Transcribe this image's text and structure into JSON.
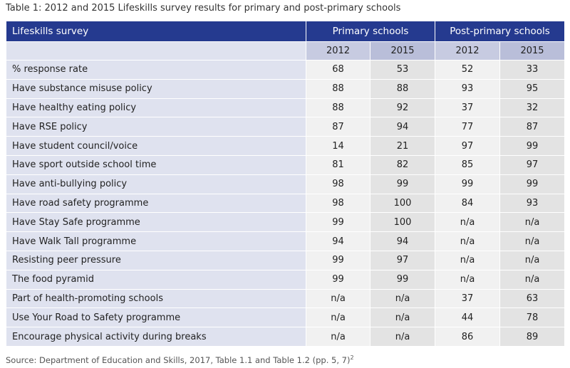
{
  "caption": "Table 1: 2012 and 2015 Lifeskills survey results for primary and post-primary schools",
  "header": {
    "label": "Lifeskills survey",
    "group_primary": "Primary schools",
    "group_post": "Post-primary schools"
  },
  "years": [
    "2012",
    "2015",
    "2012",
    "2015"
  ],
  "rows": [
    {
      "label": "% response rate",
      "values": [
        "68",
        "53",
        "52",
        "33"
      ]
    },
    {
      "label": "Have substance misuse policy",
      "values": [
        "88",
        "88",
        "93",
        "95"
      ]
    },
    {
      "label": "Have healthy eating policy",
      "values": [
        "88",
        "92",
        "37",
        "32"
      ]
    },
    {
      "label": "Have RSE policy",
      "values": [
        "87",
        "94",
        "77",
        "87"
      ]
    },
    {
      "label": "Have student council/voice",
      "values": [
        "14",
        "21",
        "97",
        "99"
      ]
    },
    {
      "label": "Have sport outside school time",
      "values": [
        "81",
        "82",
        "85",
        "97"
      ]
    },
    {
      "label": "Have anti-bullying policy",
      "values": [
        "98",
        "99",
        "99",
        "99"
      ]
    },
    {
      "label": "Have road safety programme",
      "values": [
        "98",
        "100",
        "84",
        "93"
      ]
    },
    {
      "label": "Have Stay Safe programme",
      "values": [
        "99",
        "100",
        "n/a",
        "n/a"
      ]
    },
    {
      "label": "Have Walk Tall programme",
      "values": [
        "94",
        "94",
        "n/a",
        "n/a"
      ]
    },
    {
      "label": "Resisting peer pressure",
      "values": [
        "99",
        "97",
        "n/a",
        "n/a"
      ]
    },
    {
      "label": "The food pyramid",
      "values": [
        "99",
        "99",
        "n/a",
        "n/a"
      ]
    },
    {
      "label": "Part of health-promoting schools",
      "values": [
        "n/a",
        "n/a",
        "37",
        "63"
      ]
    },
    {
      "label": "Use Your Road to Safety programme",
      "values": [
        "n/a",
        "n/a",
        "44",
        "78"
      ]
    },
    {
      "label": "Encourage physical activity during breaks",
      "values": [
        "n/a",
        "n/a",
        "86",
        "89"
      ]
    }
  ],
  "source": {
    "text": "Source: Department of Education and Skills, 2017, Table 1.1 and Table 1.2 (pp. 5, 7)",
    "footnote": "2"
  },
  "colors": {
    "header_bg": "#253a8f",
    "label_bg": "#dfe2ef",
    "year_bg": "#c7cbe1",
    "cell_bg": "#f1f1f1",
    "cell_alt_bg": "#e3e3e3"
  }
}
